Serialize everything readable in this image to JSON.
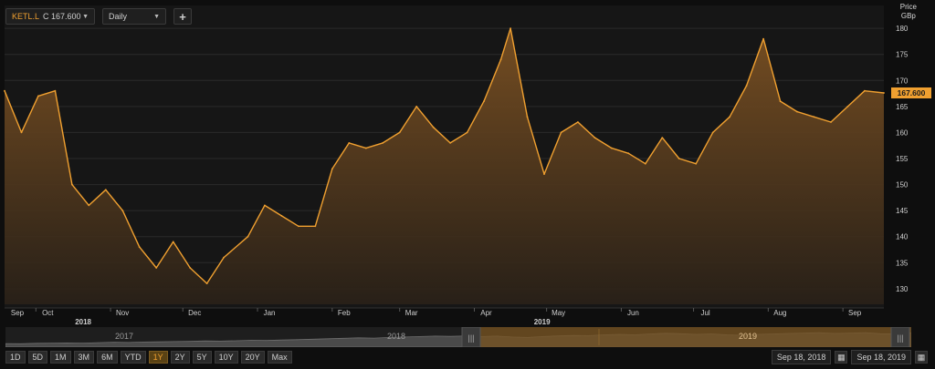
{
  "toolbar": {
    "symbol_code": "KETL.L",
    "symbol_price": "C 167.600",
    "interval": "Daily",
    "plus": "+"
  },
  "price_axis": {
    "label_line1": "Price",
    "label_line2": "GBp"
  },
  "last_price_tag": "167.600",
  "range_buttons": [
    "1D",
    "5D",
    "1M",
    "3M",
    "6M",
    "YTD",
    "1Y",
    "2Y",
    "5Y",
    "10Y",
    "20Y",
    "Max"
  ],
  "active_range": "1Y",
  "navigator": {
    "years": [
      "2017",
      "2018",
      "2019"
    ]
  },
  "date_range": {
    "start": "Sep 18, 2018",
    "end": "Sep 18, 2019"
  },
  "colors": {
    "line": "#f0a030",
    "background": "#0e0e0e",
    "plot_bg": "#161616",
    "tag_bg": "#f0a030"
  },
  "chart_data": {
    "type": "area",
    "title": "",
    "xlabel": "",
    "ylabel": "Price GBp",
    "ylim": [
      127,
      183
    ],
    "yticks": [
      130,
      135,
      140,
      145,
      150,
      155,
      160,
      165,
      170,
      175,
      180
    ],
    "x_ticks": [
      "Sep",
      "Oct",
      "Nov",
      "Dec",
      "Jan",
      "Feb",
      "Mar",
      "Apr",
      "May",
      "Jun",
      "Jul",
      "Aug",
      "Sep"
    ],
    "year_labels": [
      "2018",
      "2019"
    ],
    "x": [
      "2018-09-18",
      "2018-09-25",
      "2018-10-02",
      "2018-10-09",
      "2018-10-16",
      "2018-10-23",
      "2018-10-30",
      "2018-11-06",
      "2018-11-13",
      "2018-11-20",
      "2018-11-27",
      "2018-12-04",
      "2018-12-11",
      "2018-12-18",
      "2018-12-28",
      "2019-01-04",
      "2019-01-11",
      "2019-01-18",
      "2019-01-25",
      "2019-02-01",
      "2019-02-08",
      "2019-02-15",
      "2019-02-22",
      "2019-03-01",
      "2019-03-08",
      "2019-03-15",
      "2019-03-22",
      "2019-03-29",
      "2019-04-05",
      "2019-04-12",
      "2019-04-16",
      "2019-04-23",
      "2019-04-30",
      "2019-05-07",
      "2019-05-14",
      "2019-05-21",
      "2019-05-28",
      "2019-06-04",
      "2019-06-11",
      "2019-06-18",
      "2019-06-25",
      "2019-07-02",
      "2019-07-09",
      "2019-07-16",
      "2019-07-23",
      "2019-07-30",
      "2019-08-06",
      "2019-08-13",
      "2019-08-20",
      "2019-08-27",
      "2019-09-03",
      "2019-09-10",
      "2019-09-18"
    ],
    "series": [
      {
        "values": [
          168,
          160,
          167,
          168,
          150,
          146,
          149,
          145,
          138,
          134,
          139,
          134,
          131,
          136,
          140,
          146,
          144,
          142,
          142,
          153,
          158,
          157,
          158,
          160,
          165,
          161,
          158,
          160,
          166,
          174,
          180,
          163,
          152,
          160,
          162,
          159,
          157,
          156,
          154,
          159,
          155,
          154,
          160,
          163,
          169,
          178,
          166,
          164,
          163,
          162,
          165,
          168,
          167.6
        ]
      }
    ]
  }
}
